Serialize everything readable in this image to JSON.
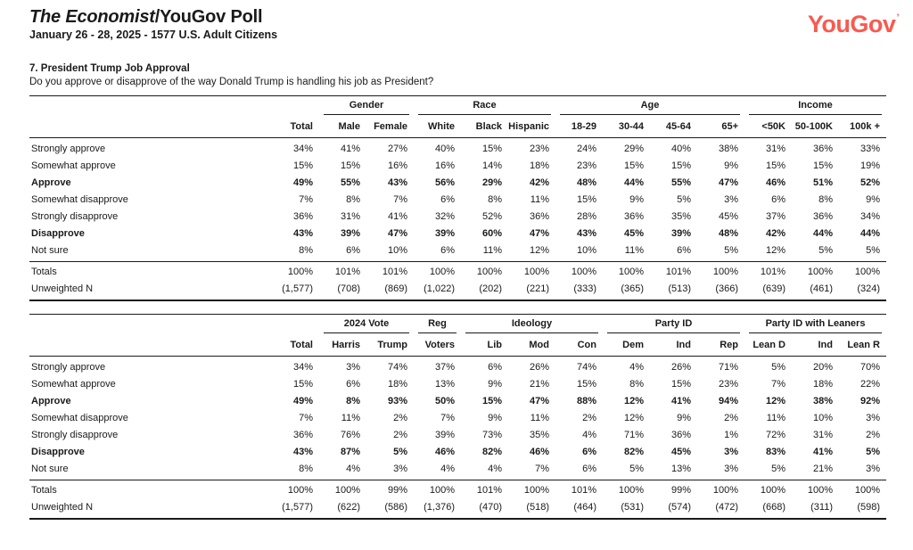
{
  "header": {
    "title_italic": "The Economist",
    "title_rest": "/YouGov Poll",
    "subtitle": "January 26 - 28, 2025 - 1577 U.S. Adult Citizens",
    "logo_text": "YouGov",
    "logo_mark": "’",
    "logo_color": "#f95a4f"
  },
  "question": {
    "number_title": "7. President Trump Job Approval",
    "text": "Do you approve or disapprove of the way Donald Trump is handling his job as President?"
  },
  "tables": [
    {
      "name": "demographics",
      "groups": [
        {
          "label": "",
          "cols": [
            "Total"
          ]
        },
        {
          "label": "Gender",
          "cols": [
            "Male",
            "Female"
          ]
        },
        {
          "label": "Race",
          "cols": [
            "White",
            "Black",
            "Hispanic"
          ]
        },
        {
          "label": "Age",
          "cols": [
            "18-29",
            "30-44",
            "45-64",
            "65+"
          ]
        },
        {
          "label": "Income",
          "cols": [
            "<50K",
            "50-100K",
            "100k +"
          ]
        }
      ],
      "rows": [
        {
          "label": "Strongly approve",
          "bold": false,
          "values": [
            "34%",
            "41%",
            "27%",
            "40%",
            "15%",
            "23%",
            "24%",
            "29%",
            "40%",
            "38%",
            "31%",
            "36%",
            "33%"
          ]
        },
        {
          "label": "Somewhat approve",
          "bold": false,
          "values": [
            "15%",
            "15%",
            "16%",
            "16%",
            "14%",
            "18%",
            "23%",
            "15%",
            "15%",
            "9%",
            "15%",
            "15%",
            "19%"
          ]
        },
        {
          "label": "Approve",
          "bold": true,
          "values": [
            "49%",
            "55%",
            "43%",
            "56%",
            "29%",
            "42%",
            "48%",
            "44%",
            "55%",
            "47%",
            "46%",
            "51%",
            "52%"
          ]
        },
        {
          "label": "Somewhat disapprove",
          "bold": false,
          "values": [
            "7%",
            "8%",
            "7%",
            "6%",
            "8%",
            "11%",
            "15%",
            "9%",
            "5%",
            "3%",
            "6%",
            "8%",
            "9%"
          ]
        },
        {
          "label": "Strongly disapprove",
          "bold": false,
          "values": [
            "36%",
            "31%",
            "41%",
            "32%",
            "52%",
            "36%",
            "28%",
            "36%",
            "35%",
            "45%",
            "37%",
            "36%",
            "34%"
          ]
        },
        {
          "label": "Disapprove",
          "bold": true,
          "values": [
            "43%",
            "39%",
            "47%",
            "39%",
            "60%",
            "47%",
            "43%",
            "45%",
            "39%",
            "48%",
            "42%",
            "44%",
            "44%"
          ]
        },
        {
          "label": "Not sure",
          "bold": false,
          "values": [
            "8%",
            "6%",
            "10%",
            "6%",
            "11%",
            "12%",
            "10%",
            "11%",
            "6%",
            "5%",
            "12%",
            "5%",
            "5%"
          ]
        }
      ],
      "footer_rows": [
        {
          "label": "Totals",
          "bold": false,
          "values": [
            "100%",
            "101%",
            "101%",
            "100%",
            "100%",
            "100%",
            "100%",
            "100%",
            "101%",
            "100%",
            "101%",
            "100%",
            "100%"
          ]
        },
        {
          "label": "Unweighted N",
          "bold": false,
          "values": [
            "(1,577)",
            "(708)",
            "(869)",
            "(1,022)",
            "(202)",
            "(221)",
            "(333)",
            "(365)",
            "(513)",
            "(366)",
            "(639)",
            "(461)",
            "(324)"
          ]
        }
      ]
    },
    {
      "name": "politics",
      "groups": [
        {
          "label": "",
          "cols": [
            "Total"
          ]
        },
        {
          "label": "2024 Vote",
          "cols": [
            "Harris",
            "Trump"
          ]
        },
        {
          "label": "Reg",
          "cols": [
            "Voters"
          ]
        },
        {
          "label": "Ideology",
          "cols": [
            "Lib",
            "Mod",
            "Con"
          ]
        },
        {
          "label": "Party ID",
          "cols": [
            "Dem",
            "Ind",
            "Rep"
          ]
        },
        {
          "label": "Party ID with Leaners",
          "cols": [
            "Lean D",
            "Ind",
            "Lean R"
          ]
        }
      ],
      "rows": [
        {
          "label": "Strongly approve",
          "bold": false,
          "values": [
            "34%",
            "3%",
            "74%",
            "37%",
            "6%",
            "26%",
            "74%",
            "4%",
            "26%",
            "71%",
            "5%",
            "20%",
            "70%"
          ]
        },
        {
          "label": "Somewhat approve",
          "bold": false,
          "values": [
            "15%",
            "6%",
            "18%",
            "13%",
            "9%",
            "21%",
            "15%",
            "8%",
            "15%",
            "23%",
            "7%",
            "18%",
            "22%"
          ]
        },
        {
          "label": "Approve",
          "bold": true,
          "values": [
            "49%",
            "8%",
            "93%",
            "50%",
            "15%",
            "47%",
            "88%",
            "12%",
            "41%",
            "94%",
            "12%",
            "38%",
            "92%"
          ]
        },
        {
          "label": "Somewhat disapprove",
          "bold": false,
          "values": [
            "7%",
            "11%",
            "2%",
            "7%",
            "9%",
            "11%",
            "2%",
            "12%",
            "9%",
            "2%",
            "11%",
            "10%",
            "3%"
          ]
        },
        {
          "label": "Strongly disapprove",
          "bold": false,
          "values": [
            "36%",
            "76%",
            "2%",
            "39%",
            "73%",
            "35%",
            "4%",
            "71%",
            "36%",
            "1%",
            "72%",
            "31%",
            "2%"
          ]
        },
        {
          "label": "Disapprove",
          "bold": true,
          "values": [
            "43%",
            "87%",
            "5%",
            "46%",
            "82%",
            "46%",
            "6%",
            "82%",
            "45%",
            "3%",
            "83%",
            "41%",
            "5%"
          ]
        },
        {
          "label": "Not sure",
          "bold": false,
          "values": [
            "8%",
            "4%",
            "3%",
            "4%",
            "4%",
            "7%",
            "6%",
            "5%",
            "13%",
            "3%",
            "5%",
            "21%",
            "3%"
          ]
        }
      ],
      "footer_rows": [
        {
          "label": "Totals",
          "bold": false,
          "values": [
            "100%",
            "100%",
            "99%",
            "100%",
            "101%",
            "100%",
            "101%",
            "100%",
            "99%",
            "100%",
            "100%",
            "100%",
            "100%"
          ]
        },
        {
          "label": "Unweighted N",
          "bold": false,
          "values": [
            "(1,577)",
            "(622)",
            "(586)",
            "(1,376)",
            "(470)",
            "(518)",
            "(464)",
            "(531)",
            "(574)",
            "(472)",
            "(668)",
            "(311)",
            "(598)"
          ]
        }
      ]
    }
  ]
}
